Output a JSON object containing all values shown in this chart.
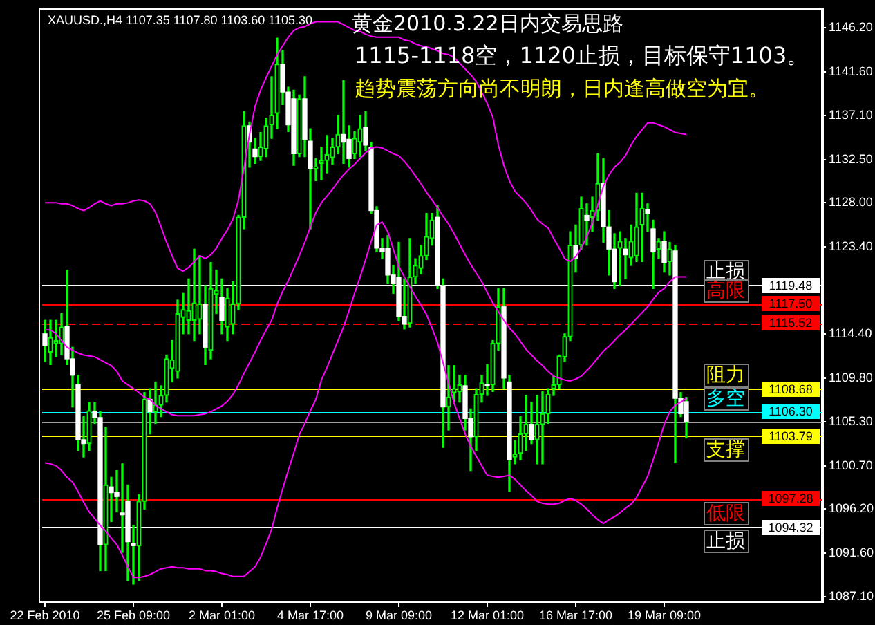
{
  "chart_data": {
    "type": "candlestick",
    "title": "黄金2010.3.22日内交易思路",
    "subtitle": "1115-1118空，1120止损，目标保守1103。",
    "annotations": [
      "XAUUSD.,H4 1107.35 1107.80 1103.60 1105.30",
      "趋势震荡方向尚不明朗，日内逢高做空为宜。",
      {
        "text": "1119.48",
        "y": 1119.48
      },
      {
        "text": "1117.50",
        "y": 1117.5
      },
      {
        "text": "1115.52",
        "y": 1115.52
      },
      {
        "text": "1108.68",
        "y": 1108.68
      },
      {
        "text": "1106.30",
        "y": 1106.3
      },
      {
        "text": "1103.79",
        "y": 1103.79
      },
      {
        "text": "1097.28",
        "y": 1097.28
      },
      {
        "text": "1094.32",
        "y": 1094.32
      }
    ],
    "categories": [
      "22 Feb 2010",
      null,
      null,
      null,
      null,
      null,
      null,
      null,
      null,
      null,
      null,
      null,
      null,
      null,
      null,
      null,
      "25 Feb 09:00",
      null,
      null,
      null,
      null,
      null,
      null,
      null,
      null,
      null,
      null,
      null,
      null,
      null,
      null,
      null,
      "2 Mar 01:00",
      null,
      null,
      null,
      null,
      null,
      null,
      null,
      null,
      null,
      null,
      null,
      null,
      null,
      null,
      null,
      "4 Mar 17:00",
      null,
      null,
      null,
      null,
      null,
      null,
      null,
      null,
      null,
      null,
      null,
      null,
      null,
      null,
      null,
      "9 Mar 09:00",
      null,
      null,
      null,
      null,
      null,
      null,
      null,
      null,
      null,
      null,
      null,
      null,
      null,
      null,
      null,
      "12 Mar 01:00",
      null,
      null,
      null,
      null,
      null,
      null,
      null,
      null,
      null,
      null,
      null,
      null,
      null,
      null,
      null,
      "16 Mar 17:00",
      null,
      null,
      null,
      null,
      null,
      null,
      null,
      null,
      null,
      null,
      null,
      null,
      null,
      null,
      null,
      "19 Mar 09:00",
      null,
      null,
      null,
      null,
      null,
      null,
      null,
      null,
      null,
      null,
      null,
      null,
      null,
      null,
      null,
      null,
      null,
      null,
      null,
      null,
      null,
      null,
      null,
      null,
      null,
      null,
      null,
      null
    ],
    "color": "#00ff00",
    "colors": [
      "#ffffff",
      "#00ff00",
      "#00ff00",
      "#00ff00",
      "#ffffff",
      "#ffffff",
      "#ffffff",
      "#ffffff",
      "#00ff00",
      "#ffffff",
      "#ffffff",
      "#00ff00",
      "#ffffff",
      "#ffffff",
      "#ffffff",
      "#ffffff",
      "#ffffff",
      "#00ff00",
      "#00ff00",
      "#ffffff",
      "#00ff00",
      "#00ff00",
      "#00ff00",
      "#00ff00",
      "#00ff00",
      "#00ff00",
      "#00ff00",
      "#00ff00",
      "#00ff00",
      "#ffffff",
      "#00ff00",
      "#00ff00",
      "#ffffff",
      "#00ff00",
      "#00ff00",
      "#00ff00",
      "#00ff00",
      "#ffffff",
      "#ffffff",
      "#00ff00",
      "#00ff00",
      "#00ff00",
      "#00ff00",
      "#ffffff",
      "#ffffff",
      "#ffffff",
      "#00ff00",
      "#ffffff",
      "#ffffff",
      "#00ff00",
      "#00ff00",
      "#00ff00",
      "#00ff00",
      "#00ff00",
      "#ffffff",
      "#ffffff",
      "#00ff00",
      "#00ff00",
      "#ffffff",
      "#ffffff",
      "#ffffff",
      "#ffffff",
      "#ffffff",
      "#ffffff",
      "#ffffff",
      "#ffffff",
      "#00ff00",
      "#00ff00",
      "#00ff00",
      "#00ff00",
      "#00ff00",
      "#ffffff",
      "#ffffff",
      "#00ff00",
      "#00ff00",
      "#00ff00",
      "#ffffff",
      "#ffffff",
      "#00ff00",
      "#00ff00",
      "#ffffff",
      "#00ff00",
      "#00ff00",
      "#ffffff",
      "#ffffff",
      "#00ff00",
      "#00ff00",
      "#00ff00",
      "#ffffff",
      "#00ff00",
      "#00ff00",
      "#00ff00",
      "#00ff00",
      "#00ff00",
      "#00ff00",
      "#00ff00",
      "#ffffff",
      "#00ff00",
      "#ffffff",
      "#00ff00",
      "#00ff00",
      "#ffffff",
      "#ffffff",
      "#ffffff",
      "#00ff00",
      "#ffffff",
      "#00ff00",
      "#00ff00",
      "#00ff00",
      "#ffffff",
      "#ffffff",
      "#00ff00",
      "#ffffff",
      "#00ff00",
      "#ffffff",
      "#ffffff",
      "#ffffff",
      null,
      null,
      null,
      null,
      null,
      null,
      null,
      null,
      null,
      null,
      null,
      null,
      null,
      null,
      null,
      null,
      null,
      null,
      null,
      null,
      null,
      null,
      null,
      null
    ],
    "ohlc": [
      [
        1114.4,
        1115.8,
        1111.5,
        1113.2
      ],
      [
        1112.5,
        1115.8,
        1111.2,
        1114.0
      ],
      [
        1113.4,
        1115.8,
        1112.0,
        1113.7
      ],
      [
        1113.4,
        1116.5,
        1112.2,
        1115.1
      ],
      [
        1115.2,
        1121.0,
        1111.2,
        1111.8
      ],
      [
        1111.8,
        1113.0,
        1106.8,
        1110.1
      ],
      [
        1109.1,
        1110.1,
        1102.3,
        1103.4
      ],
      [
        1103.4,
        1105.8,
        1101.6,
        1103.0
      ],
      [
        1103.0,
        1107.3,
        1102.3,
        1106.4
      ],
      [
        1106.3,
        1107.3,
        1105.1,
        1105.7
      ],
      [
        1105.7,
        1106.3,
        1089.8,
        1092.5
      ],
      [
        1092.5,
        1104.7,
        1089.8,
        1098.7
      ],
      [
        1098.5,
        1099.5,
        1094.9,
        1097.9
      ],
      [
        1097.9,
        1100.2,
        1095.9,
        1097.5
      ],
      [
        1095.8,
        1100.9,
        1091.7,
        1095.6
      ],
      [
        1097.0,
        1098.7,
        1088.8,
        1092.8
      ],
      [
        1092.6,
        1094.5,
        1088.4,
        1092.4
      ],
      [
        1092.4,
        1097.7,
        1088.8,
        1097.0
      ],
      [
        1097.0,
        1108.3,
        1096.2,
        1107.6
      ],
      [
        1107.6,
        1108.7,
        1104.0,
        1106.3
      ],
      [
        1106.3,
        1109.4,
        1105.1,
        1107.0
      ],
      [
        1107.0,
        1109.0,
        1105.8,
        1108.0
      ],
      [
        1108.0,
        1112.2,
        1107.3,
        1111.8
      ],
      [
        1110.8,
        1113.7,
        1109.4,
        1111.7
      ],
      [
        1110.5,
        1117.9,
        1109.8,
        1116.5
      ],
      [
        1116.1,
        1118.6,
        1114.4,
        1116.9
      ],
      [
        1115.8,
        1120.1,
        1114.4,
        1116.8
      ],
      [
        1115.8,
        1123.2,
        1113.7,
        1117.6
      ],
      [
        1115.9,
        1122.5,
        1114.4,
        1117.5
      ],
      [
        1117.5,
        1119.4,
        1111.2,
        1113.0
      ],
      [
        1112.7,
        1121.8,
        1111.8,
        1119.1
      ],
      [
        1118.5,
        1121.0,
        1116.5,
        1118.9
      ],
      [
        1118.2,
        1120.1,
        1114.4,
        1115.8
      ],
      [
        1115.1,
        1119.1,
        1113.7,
        1118.1
      ],
      [
        1115.4,
        1119.8,
        1114.4,
        1117.5
      ],
      [
        1117.5,
        1126.7,
        1116.9,
        1126.5
      ],
      [
        1126.5,
        1137.5,
        1125.3,
        1136.0
      ],
      [
        1136.0,
        1136.4,
        1131.7,
        1134.3
      ],
      [
        1133.6,
        1134.7,
        1132.1,
        1132.8
      ],
      [
        1132.8,
        1135.3,
        1132.4,
        1133.8
      ],
      [
        1133.6,
        1136.8,
        1132.8,
        1136.0
      ],
      [
        1136.1,
        1141.1,
        1134.7,
        1137.1
      ],
      [
        1137.3,
        1145.1,
        1135.7,
        1142.4
      ],
      [
        1142.4,
        1143.8,
        1138.2,
        1139.5
      ],
      [
        1139.5,
        1140.0,
        1135.4,
        1136.1
      ],
      [
        1138.8,
        1139.7,
        1131.9,
        1133.1
      ],
      [
        1133.1,
        1139.2,
        1132.8,
        1138.8
      ],
      [
        1138.8,
        1141.1,
        1132.8,
        1134.6
      ],
      [
        1134.4,
        1135.7,
        1125.3,
        1131.6
      ],
      [
        1131.6,
        1132.6,
        1130.3,
        1131.7
      ],
      [
        1132.1,
        1133.8,
        1130.4,
        1132.4
      ],
      [
        1132.4,
        1135.0,
        1131.1,
        1133.0
      ],
      [
        1132.7,
        1134.7,
        1132.0,
        1133.8
      ],
      [
        1133.8,
        1137.1,
        1133.1,
        1135.1
      ],
      [
        1135.1,
        1140.7,
        1132.1,
        1134.3
      ],
      [
        1134.6,
        1136.0,
        1131.7,
        1132.6
      ],
      [
        1133.1,
        1135.4,
        1132.6,
        1134.7
      ],
      [
        1134.3,
        1137.1,
        1132.8,
        1135.7
      ],
      [
        1135.8,
        1137.5,
        1133.4,
        1134.0
      ],
      [
        1133.8,
        1134.3,
        1126.9,
        1127.2
      ],
      [
        1127.2,
        1127.6,
        1122.9,
        1123.3
      ],
      [
        1123.3,
        1124.3,
        1122.2,
        1122.9
      ],
      [
        1123.3,
        1124.6,
        1119.6,
        1120.5
      ],
      [
        1120.5,
        1121.5,
        1118.6,
        1119.6
      ],
      [
        1120.3,
        1123.9,
        1115.8,
        1116.2
      ],
      [
        1116.2,
        1120.1,
        1114.9,
        1115.4
      ],
      [
        1115.5,
        1124.3,
        1115.1,
        1120.3
      ],
      [
        1120.3,
        1122.2,
        1119.6,
        1121.5
      ],
      [
        1121.2,
        1123.6,
        1120.6,
        1122.5
      ],
      [
        1122.5,
        1126.9,
        1122.1,
        1124.5
      ],
      [
        1124.3,
        1126.9,
        1123.6,
        1126.2
      ],
      [
        1126.5,
        1127.7,
        1119.1,
        1119.4
      ],
      [
        1119.4,
        1120.1,
        1102.6,
        1106.8
      ],
      [
        1106.8,
        1111.1,
        1104.4,
        1107.8
      ],
      [
        1108.3,
        1111.1,
        1107.3,
        1108.7
      ],
      [
        1108.4,
        1110.1,
        1107.3,
        1109.1
      ],
      [
        1109.0,
        1110.1,
        1104.4,
        1105.6
      ],
      [
        1105.6,
        1106.6,
        1100.2,
        1103.7
      ],
      [
        1103.7,
        1108.7,
        1102.3,
        1108.1
      ],
      [
        1108.1,
        1110.1,
        1107.3,
        1109.3
      ],
      [
        1109.1,
        1111.2,
        1108.0,
        1109.0
      ],
      [
        1109.1,
        1113.7,
        1108.4,
        1113.4
      ],
      [
        1113.4,
        1119.1,
        1112.7,
        1117.2
      ],
      [
        1117.2,
        1119.1,
        1108.7,
        1109.8
      ],
      [
        1109.4,
        1110.1,
        1098.0,
        1101.3
      ],
      [
        1101.6,
        1103.3,
        1100.9,
        1101.9
      ],
      [
        1102.0,
        1105.8,
        1101.3,
        1104.0
      ],
      [
        1104.0,
        1108.0,
        1102.3,
        1105.0
      ],
      [
        1105.0,
        1107.3,
        1103.0,
        1103.4
      ],
      [
        1103.4,
        1108.0,
        1100.9,
        1105.0
      ],
      [
        1105.0,
        1108.4,
        1100.9,
        1106.1
      ],
      [
        1106.1,
        1108.7,
        1105.1,
        1108.1
      ],
      [
        1108.7,
        1110.1,
        1108.0,
        1109.1
      ],
      [
        1109.1,
        1112.2,
        1108.7,
        1112.1
      ],
      [
        1112.0,
        1114.4,
        1111.5,
        1114.1
      ],
      [
        1114.1,
        1125.0,
        1113.7,
        1123.6
      ],
      [
        1123.6,
        1125.7,
        1120.8,
        1122.2
      ],
      [
        1123.6,
        1128.6,
        1123.2,
        1127.4
      ],
      [
        1126.7,
        1127.9,
        1123.6,
        1126.2
      ],
      [
        1126.5,
        1128.6,
        1125.0,
        1127.2
      ],
      [
        1127.2,
        1133.1,
        1126.2,
        1130.0
      ],
      [
        1130.0,
        1132.6,
        1123.9,
        1125.5
      ],
      [
        1125.5,
        1127.2,
        1120.5,
        1123.2
      ],
      [
        1123.2,
        1124.8,
        1119.1,
        1119.8
      ],
      [
        1123.3,
        1125.0,
        1119.4,
        1124.0
      ],
      [
        1123.2,
        1124.3,
        1120.1,
        1122.6
      ],
      [
        1122.3,
        1125.7,
        1121.5,
        1124.0
      ],
      [
        1122.5,
        1129.0,
        1121.9,
        1125.5
      ],
      [
        1125.7,
        1129.0,
        1121.9,
        1127.4
      ],
      [
        1127.3,
        1127.9,
        1125.0,
        1126.9
      ],
      [
        1125.3,
        1126.2,
        1119.1,
        1122.9
      ],
      [
        1123.2,
        1124.3,
        1122.2,
        1124.0
      ],
      [
        1124.0,
        1125.0,
        1120.8,
        1121.8
      ],
      [
        1121.9,
        1123.9,
        1120.5,
        1123.2
      ],
      [
        1123.0,
        1123.6,
        1101.0,
        1107.7
      ],
      [
        1107.7,
        1108.3,
        1105.8,
        1106.1
      ],
      [
        1107.35,
        1107.8,
        1103.6,
        1105.3
      ],
      null,
      null,
      null,
      null,
      null,
      null,
      null,
      null,
      null,
      null,
      null,
      null,
      null,
      null,
      null,
      null,
      null,
      null,
      null,
      null,
      null,
      null,
      null,
      null
    ],
    "series": [
      {
        "type": "line",
        "color": "#ff00ff",
        "values": [
          1128.0,
          1128.0,
          1128.0,
          1127.9,
          1127.9,
          1127.7,
          1127.4,
          1127.2,
          1127.5,
          1127.9,
          1128.2,
          1127.9,
          1127.7,
          1127.9,
          1127.9,
          1128.0,
          1128.2,
          1128.3,
          1128.2,
          1127.9,
          1127.0,
          1125.5,
          1123.9,
          1122.5,
          1121.2,
          1120.9,
          1121.3,
          1121.9,
          1122.5,
          1122.2,
          1122.6,
          1123.3,
          1124.3,
          1125.2,
          1126.3,
          1128.3,
          1131.6,
          1135.1,
          1138.0,
          1139.7,
          1141.0,
          1142.2,
          1143.4,
          1144.3,
          1145.2,
          1145.9,
          1146.2,
          1146.3,
          1146.6,
          1146.8,
          1146.8,
          1146.8,
          1146.8,
          1146.8,
          1146.5,
          1146.2,
          1145.9,
          1145.8,
          1145.5,
          1145.3,
          1145.2,
          1145.2,
          1145.2,
          1145.2,
          1145.2,
          1144.9,
          1144.8,
          1144.5,
          1144.3,
          1144.2,
          1144.0,
          1143.8,
          1143.5,
          1143.4,
          1143.1,
          1142.5,
          1141.9,
          1141.3,
          1140.6,
          1139.5,
          1138.3,
          1136.9,
          1134.0,
          1131.9,
          1130.3,
          1129.2,
          1128.6,
          1128.0,
          1127.2,
          1126.3,
          1125.8,
          1125.4,
          1124.3,
          1123.3,
          1122.2,
          1121.9,
          1122.4,
          1123.3,
          1124.5,
          1125.9,
          1127.8,
          1129.7,
          1130.9,
          1131.7,
          1132.2,
          1132.9,
          1134.0,
          1134.9,
          1135.6,
          1136.3,
          1136.3,
          1136.1,
          1135.9,
          1135.6,
          1135.3,
          1135.2,
          1135.1,
          null,
          null,
          null,
          null,
          null,
          null,
          null,
          null,
          null,
          null,
          null,
          null,
          null,
          null,
          null,
          null,
          null,
          null,
          null,
          null,
          null,
          null,
          null,
          null
        ]
      },
      {
        "type": "line",
        "color": "#ff00ff",
        "values": [
          1114.8,
          1114.8,
          1114.4,
          1113.7,
          1113.0,
          1112.7,
          1112.4,
          1112.2,
          1112.1,
          1112.0,
          1111.7,
          1111.4,
          1111.1,
          1110.5,
          1109.5,
          1109.1,
          1108.7,
          1108.3,
          1107.8,
          1107.6,
          1107.0,
          1106.6,
          1106.3,
          1106.0,
          1105.9,
          1105.9,
          1105.9,
          1105.9,
          1106.0,
          1106.1,
          1106.3,
          1106.6,
          1106.9,
          1107.4,
          1108.1,
          1109.1,
          1110.3,
          1111.4,
          1112.5,
          1113.7,
          1114.8,
          1115.8,
          1117.5,
          1118.8,
          1119.9,
          1121.2,
          1122.5,
          1123.9,
          1125.5,
          1127.0,
          1128.0,
          1128.7,
          1129.4,
          1130.2,
          1130.9,
          1131.5,
          1132.0,
          1132.6,
          1133.2,
          1133.7,
          1133.8,
          1133.7,
          1133.4,
          1133.1,
          1132.9,
          1132.3,
          1131.6,
          1130.8,
          1130.0,
          1129.1,
          1128.3,
          1127.5,
          1126.6,
          1125.8,
          1124.8,
          1123.7,
          1122.6,
          1121.6,
          1120.7,
          1119.8,
          1118.7,
          1117.6,
          1116.7,
          1115.8,
          1115.0,
          1114.4,
          1113.6,
          1112.8,
          1112.2,
          1111.6,
          1111.1,
          1110.5,
          1110.0,
          1109.8,
          1109.6,
          1109.5,
          1109.7,
          1110.0,
          1110.6,
          1111.2,
          1111.9,
          1112.6,
          1113.1,
          1113.7,
          1114.3,
          1114.8,
          1115.4,
          1116.0,
          1116.6,
          1117.2,
          1118.0,
          1118.7,
          1119.1,
          1119.8,
          1120.3,
          1120.3,
          1120.3,
          null,
          null,
          null,
          null,
          null,
          null,
          null,
          null,
          null,
          null,
          null,
          null,
          null,
          null,
          null,
          null,
          null,
          null,
          null,
          null,
          null,
          null,
          null,
          null
        ]
      },
      {
        "type": "line",
        "color": "#ff00ff",
        "values": [
          1101.0,
          1100.9,
          1100.7,
          1100.2,
          1099.5,
          1099.0,
          1098.0,
          1096.9,
          1095.9,
          1095.2,
          1094.5,
          1093.9,
          1093.2,
          1092.5,
          1091.4,
          1090.2,
          1089.1,
          1089.1,
          1089.2,
          1089.4,
          1089.7,
          1090.0,
          1090.1,
          1090.2,
          1090.1,
          1090.1,
          1090.0,
          1090.0,
          1090.0,
          1089.8,
          1089.8,
          1089.7,
          1089.5,
          1089.4,
          1089.2,
          1089.2,
          1089.2,
          1089.7,
          1090.2,
          1091.2,
          1092.6,
          1094.1,
          1096.3,
          1098.3,
          1100.2,
          1102.0,
          1103.9,
          1105.1,
          1106.4,
          1107.6,
          1109.6,
          1110.9,
          1112.3,
          1113.7,
          1115.1,
          1116.8,
          1118.6,
          1120.3,
          1122.1,
          1124.0,
          1125.7,
          1126.0,
          1125.0,
          1123.2,
          1121.4,
          1120.3,
          1119.3,
          1118.3,
          1117.4,
          1116.4,
          1115.0,
          1113.5,
          1111.4,
          1109.3,
          1107.2,
          1105.6,
          1104.0,
          1102.7,
          1101.7,
          1100.7,
          1099.7,
          1099.6,
          1099.5,
          1099.6,
          1099.7,
          1099.3,
          1098.7,
          1098.1,
          1097.6,
          1097.0,
          1096.8,
          1096.7,
          1096.7,
          1096.8,
          1097.1,
          1097.3,
          1097.1,
          1096.7,
          1096.2,
          1095.6,
          1095.1,
          1094.7,
          1095.1,
          1095.4,
          1095.8,
          1096.3,
          1096.7,
          1097.4,
          1098.5,
          1099.6,
          1101.3,
          1103.1,
          1105.0,
          1106.3,
          1107.0,
          1107.3,
          1107.7,
          null,
          null,
          null,
          null,
          null,
          null,
          null,
          null,
          null,
          null,
          null,
          null,
          null,
          null,
          null,
          null,
          null,
          null,
          null,
          null,
          null,
          null,
          null,
          null
        ]
      }
    ],
    "ylim": [
      1086.6,
      1148.0
    ],
    "yticks": [
      {
        "value": 1087.1,
        "label": "1087.10"
      },
      {
        "value": 1091.6,
        "label": "1091.60"
      },
      {
        "value": 1096.2,
        "label": "1096.20"
      },
      {
        "value": 1100.7,
        "label": "1100.70"
      },
      {
        "value": 1105.3,
        "label": "1105.30"
      },
      {
        "value": 1109.8,
        "label": "1109.80"
      },
      {
        "value": 1114.4,
        "label": "1114.40"
      },
      {
        "value": 1123.4,
        "label": "1123.40"
      },
      {
        "value": 1128,
        "label": "1128.00"
      },
      {
        "value": 1132.5,
        "label": "1132.50"
      },
      {
        "value": 1137.1,
        "label": "1137.10"
      },
      {
        "value": 1141.6,
        "label": "1141.60"
      },
      {
        "value": 1146.2,
        "label": "1146.20"
      }
    ],
    "ref_lines": [
      {
        "axis": "y",
        "value": 1119.48,
        "label": "止损",
        "color": "#ffffff"
      },
      {
        "axis": "y",
        "value": 1117.5,
        "label": "高限",
        "color": "#ff0000"
      },
      {
        "axis": "y",
        "value": 1115.52,
        "color": "#ff0000",
        "line_style": "dashed"
      },
      {
        "axis": "y",
        "value": 1108.68,
        "label": "阻力",
        "color": "#ffff00"
      },
      {
        "axis": "y",
        "value": 1106.3,
        "label": "多空",
        "color": "#00ffff"
      },
      {
        "axis": "y",
        "value": 1105.3,
        "color": "#a0a0a0"
      },
      {
        "axis": "y",
        "value": 1103.79,
        "label": "支撑",
        "color": "#ffff00"
      },
      {
        "axis": "y",
        "value": 1097.28,
        "label": "低限",
        "color": "#ff0000"
      },
      {
        "axis": "y",
        "value": 1094.32,
        "label": "止损",
        "color": "#ffffff"
      }
    ],
    "grid": false,
    "legend": false,
    "marker": "none"
  }
}
